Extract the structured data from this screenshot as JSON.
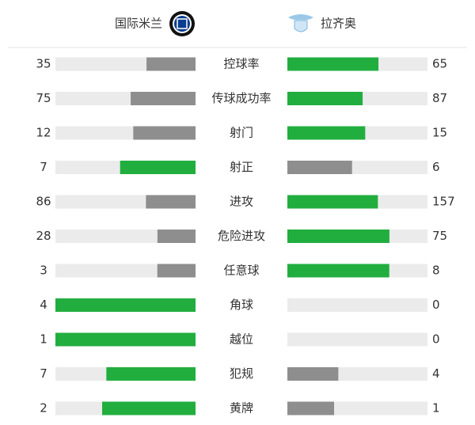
{
  "header": {
    "home": "国际米兰",
    "away": "拉齐奥"
  },
  "colors": {
    "more": "#21ae3f",
    "less": "#8e8e8e",
    "track": "#ebebeb"
  },
  "stats": [
    {
      "label": "控球率",
      "home": 35,
      "away": 65
    },
    {
      "label": "传球成功率",
      "home": 75,
      "away": 87
    },
    {
      "label": "射门",
      "home": 12,
      "away": 15
    },
    {
      "label": "射正",
      "home": 7,
      "away": 6
    },
    {
      "label": "进攻",
      "home": 86,
      "away": 157
    },
    {
      "label": "危险进攻",
      "home": 28,
      "away": 75
    },
    {
      "label": "任意球",
      "home": 3,
      "away": 8
    },
    {
      "label": "角球",
      "home": 4,
      "away": 0
    },
    {
      "label": "越位",
      "home": 1,
      "away": 0
    },
    {
      "label": "犯规",
      "home": 7,
      "away": 4
    },
    {
      "label": "黄牌",
      "home": 2,
      "away": 1
    }
  ]
}
